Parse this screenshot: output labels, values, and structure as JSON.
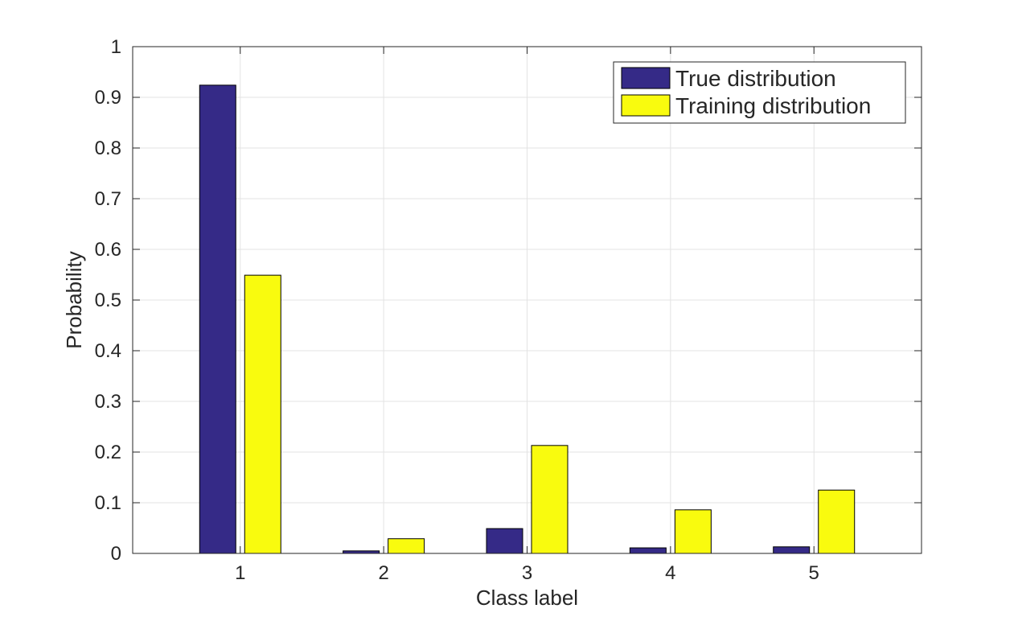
{
  "chart_data": {
    "type": "bar",
    "xlabel": "Class label",
    "ylabel": "Probability",
    "categories": [
      "1",
      "2",
      "3",
      "4",
      "5"
    ],
    "series": [
      {
        "name": "True distribution",
        "color": "#352a87",
        "values": [
          0.924,
          0.005,
          0.049,
          0.011,
          0.013
        ]
      },
      {
        "name": "Training distribution",
        "color": "#f9fb0e",
        "values": [
          0.549,
          0.029,
          0.213,
          0.086,
          0.125
        ]
      }
    ],
    "ylim": [
      0,
      1
    ],
    "yticks": [
      "0",
      "0.1",
      "0.2",
      "0.3",
      "0.4",
      "0.5",
      "0.6",
      "0.7",
      "0.8",
      "0.9",
      "1"
    ],
    "grid": true,
    "legend_position": "top-right"
  }
}
